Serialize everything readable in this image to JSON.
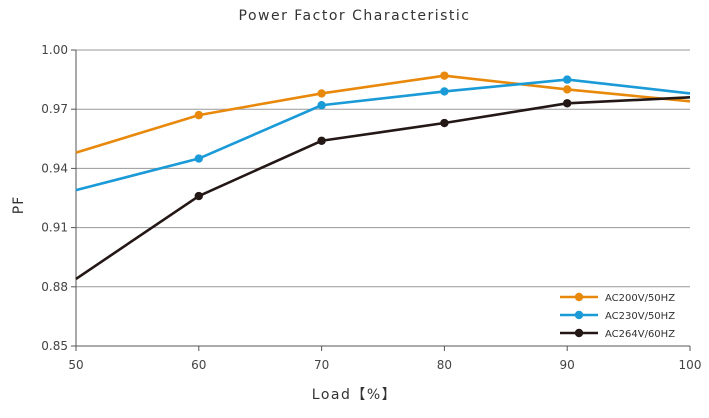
{
  "chart_data": {
    "type": "line",
    "title": "Power Factor Characteristic",
    "xlabel": "Load【%】",
    "ylabel": "PF",
    "x": [
      50,
      60,
      70,
      80,
      90,
      100
    ],
    "xlim": [
      50,
      100
    ],
    "ylim": [
      0.85,
      1.0
    ],
    "x_ticks": [
      "50",
      "60",
      "70",
      "80",
      "90",
      "100"
    ],
    "y_ticks": [
      "0.85",
      "0.88",
      "0.91",
      "0.94",
      "0.97",
      "1.00"
    ],
    "grid": "horizontal",
    "legend_position": "bottom-right",
    "series": [
      {
        "name": "AC200V/50HZ",
        "color": "#e8890c",
        "values": [
          0.948,
          0.967,
          0.978,
          0.987,
          0.98,
          0.974
        ],
        "markers": [
          false,
          true,
          true,
          true,
          true,
          false
        ]
      },
      {
        "name": "AC230V/50HZ",
        "color": "#1a9ad6",
        "values": [
          0.929,
          0.945,
          0.972,
          0.979,
          0.985,
          0.978
        ],
        "markers": [
          false,
          true,
          true,
          true,
          true,
          false
        ]
      },
      {
        "name": "AC264V/60HZ",
        "color": "#231815",
        "values": [
          0.884,
          0.926,
          0.954,
          0.963,
          0.973,
          0.976
        ],
        "markers": [
          false,
          true,
          true,
          true,
          true,
          false
        ]
      }
    ]
  }
}
